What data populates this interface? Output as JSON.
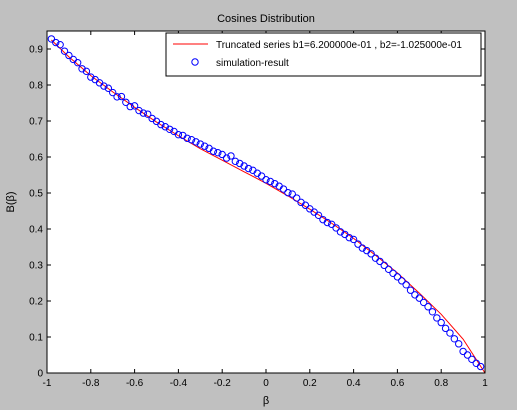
{
  "chart_data": {
    "type": "line",
    "title": "Cosines Distribution",
    "xlabel": "β",
    "ylabel": "B(β)",
    "xlim": [
      -1,
      1
    ],
    "ylim": [
      0,
      0.95
    ],
    "xticks": [
      "-1",
      "-0.8",
      "-0.6",
      "-0.4",
      "-0.2",
      "0",
      "0.2",
      "0.4",
      "0.6",
      "0.8",
      "1"
    ],
    "xtick_values": [
      -1,
      -0.8,
      -0.6,
      -0.4,
      -0.2,
      0,
      0.2,
      0.4,
      0.6,
      0.8,
      1
    ],
    "yticks": [
      "0",
      "0.1",
      "0.2",
      "0.3",
      "0.4",
      "0.5",
      "0.6",
      "0.7",
      "0.8",
      "0.9"
    ],
    "ytick_values": [
      0,
      0.1,
      0.2,
      0.3,
      0.4,
      0.5,
      0.6,
      0.7,
      0.8,
      0.9
    ],
    "grid": false,
    "legend_position": "top-right",
    "series": [
      {
        "name": "Truncated series b1=6.200000e-01 , b2=-1.025000e-01",
        "kind": "line",
        "color": "#ff0000",
        "x": [
          -0.98,
          -0.9,
          -0.8,
          -0.7,
          -0.6,
          -0.5,
          -0.4,
          -0.3,
          -0.2,
          -0.1,
          0,
          0.1,
          0.2,
          0.3,
          0.4,
          0.5,
          0.6,
          0.7,
          0.8,
          0.9,
          1.0
        ],
        "y": [
          0.925,
          0.878,
          0.826,
          0.781,
          0.738,
          0.697,
          0.659,
          0.623,
          0.591,
          0.559,
          0.527,
          0.492,
          0.455,
          0.416,
          0.374,
          0.327,
          0.278,
          0.222,
          0.163,
          0.094,
          0.0
        ]
      },
      {
        "name": "simulation-result",
        "kind": "scatter",
        "color": "#0000ff",
        "x": [
          -0.98,
          -0.96,
          -0.94,
          -0.92,
          -0.9,
          -0.88,
          -0.86,
          -0.84,
          -0.82,
          -0.8,
          -0.78,
          -0.76,
          -0.74,
          -0.72,
          -0.7,
          -0.68,
          -0.66,
          -0.64,
          -0.62,
          -0.6,
          -0.58,
          -0.56,
          -0.54,
          -0.52,
          -0.5,
          -0.48,
          -0.46,
          -0.44,
          -0.42,
          -0.4,
          -0.38,
          -0.36,
          -0.34,
          -0.32,
          -0.3,
          -0.28,
          -0.26,
          -0.24,
          -0.22,
          -0.2,
          -0.18,
          -0.16,
          -0.14,
          -0.12,
          -0.1,
          -0.08,
          -0.06,
          -0.04,
          -0.02,
          0.0,
          0.02,
          0.04,
          0.06,
          0.08,
          0.1,
          0.12,
          0.14,
          0.16,
          0.18,
          0.2,
          0.22,
          0.24,
          0.26,
          0.28,
          0.3,
          0.32,
          0.34,
          0.36,
          0.38,
          0.4,
          0.42,
          0.44,
          0.46,
          0.48,
          0.5,
          0.52,
          0.54,
          0.56,
          0.58,
          0.6,
          0.62,
          0.64,
          0.66,
          0.68,
          0.7,
          0.72,
          0.74,
          0.76,
          0.78,
          0.8,
          0.82,
          0.84,
          0.86,
          0.88,
          0.9,
          0.92,
          0.94,
          0.96,
          0.98
        ],
        "y": [
          0.928,
          0.918,
          0.912,
          0.894,
          0.882,
          0.871,
          0.862,
          0.845,
          0.838,
          0.822,
          0.815,
          0.806,
          0.797,
          0.791,
          0.779,
          0.767,
          0.768,
          0.752,
          0.74,
          0.742,
          0.729,
          0.722,
          0.719,
          0.707,
          0.699,
          0.69,
          0.684,
          0.677,
          0.671,
          0.662,
          0.66,
          0.652,
          0.648,
          0.642,
          0.636,
          0.63,
          0.624,
          0.616,
          0.612,
          0.607,
          0.597,
          0.603,
          0.588,
          0.582,
          0.575,
          0.568,
          0.563,
          0.555,
          0.547,
          0.537,
          0.532,
          0.526,
          0.519,
          0.511,
          0.501,
          0.497,
          0.486,
          0.474,
          0.466,
          0.456,
          0.447,
          0.438,
          0.426,
          0.418,
          0.413,
          0.403,
          0.392,
          0.385,
          0.376,
          0.371,
          0.358,
          0.347,
          0.34,
          0.331,
          0.319,
          0.31,
          0.299,
          0.288,
          0.277,
          0.267,
          0.256,
          0.245,
          0.23,
          0.217,
          0.208,
          0.196,
          0.184,
          0.17,
          0.153,
          0.14,
          0.124,
          0.111,
          0.095,
          0.081,
          0.06,
          0.05,
          0.038,
          0.027,
          0.018
        ]
      }
    ]
  }
}
